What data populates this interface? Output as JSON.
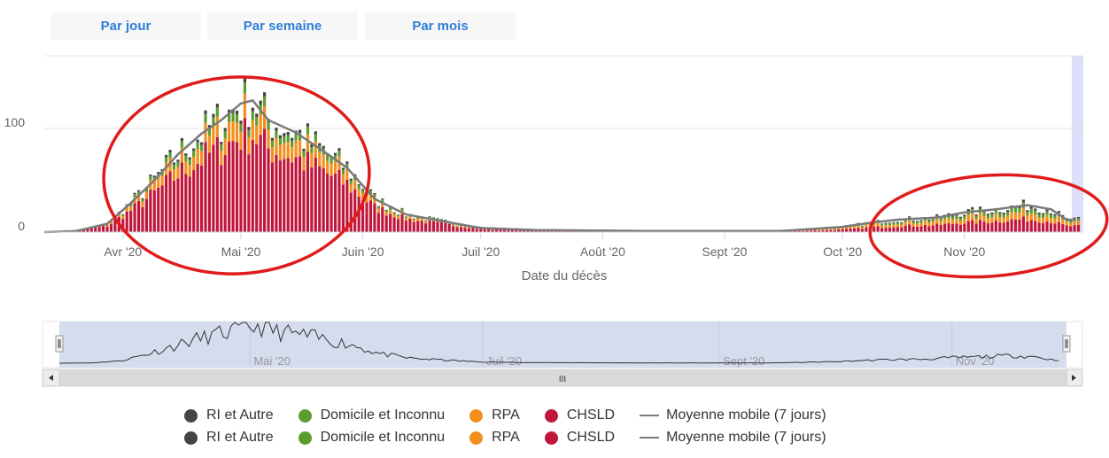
{
  "range_buttons": {
    "day": "Par jour",
    "week": "Par semaine",
    "month": "Par mois"
  },
  "colors": {
    "ri": "#434348",
    "domicile": "#5c9c2e",
    "rpa": "#f28f1e",
    "chsld": "#c0163c",
    "moving_avg": "#7a7a7a",
    "annotation": "#e11b1b",
    "navigator_fill": "#ccd6eb"
  },
  "chart_data": {
    "type": "bar",
    "stacked": true,
    "xlabel": "Date du décès",
    "ylabel": "",
    "ylim": [
      0,
      170
    ],
    "y_ticks": [
      0,
      100
    ],
    "x_range": [
      "2020-03-12",
      "2020-12-01"
    ],
    "x_ticks": [
      {
        "date": "2020-04-01",
        "label": "Avr '20"
      },
      {
        "date": "2020-05-01",
        "label": "Mai '20"
      },
      {
        "date": "2020-06-01",
        "label": "Juin '20"
      },
      {
        "date": "2020-07-01",
        "label": "Juil '20"
      },
      {
        "date": "2020-08-01",
        "label": "Août '20"
      },
      {
        "date": "2020-09-01",
        "label": "Sept '20"
      },
      {
        "date": "2020-10-01",
        "label": "Oct '20"
      },
      {
        "date": "2020-11-01",
        "label": "Nov '20"
      }
    ],
    "series_names": [
      "RI et Autre",
      "Domicile et Inconnu",
      "RPA",
      "CHSLD"
    ],
    "moving_average_name": "Moyenne mobile (7 jours)",
    "moving_average_keyframes": [
      {
        "date": "2020-03-12",
        "value": 0
      },
      {
        "date": "2020-03-20",
        "value": 1
      },
      {
        "date": "2020-03-28",
        "value": 8
      },
      {
        "date": "2020-04-03",
        "value": 28
      },
      {
        "date": "2020-04-09",
        "value": 50
      },
      {
        "date": "2020-04-15",
        "value": 75
      },
      {
        "date": "2020-04-21",
        "value": 95
      },
      {
        "date": "2020-04-26",
        "value": 108
      },
      {
        "date": "2020-05-01",
        "value": 124
      },
      {
        "date": "2020-05-04",
        "value": 127
      },
      {
        "date": "2020-05-08",
        "value": 108
      },
      {
        "date": "2020-05-15",
        "value": 96
      },
      {
        "date": "2020-05-22",
        "value": 78
      },
      {
        "date": "2020-05-28",
        "value": 62
      },
      {
        "date": "2020-06-04",
        "value": 32
      },
      {
        "date": "2020-06-12",
        "value": 17
      },
      {
        "date": "2020-06-22",
        "value": 10
      },
      {
        "date": "2020-07-01",
        "value": 4
      },
      {
        "date": "2020-07-15",
        "value": 2
      },
      {
        "date": "2020-08-15",
        "value": 1
      },
      {
        "date": "2020-09-15",
        "value": 1
      },
      {
        "date": "2020-10-01",
        "value": 5
      },
      {
        "date": "2020-10-08",
        "value": 9
      },
      {
        "date": "2020-10-15",
        "value": 12
      },
      {
        "date": "2020-10-25",
        "value": 14
      },
      {
        "date": "2020-11-01",
        "value": 19
      },
      {
        "date": "2020-11-09",
        "value": 22
      },
      {
        "date": "2020-11-17",
        "value": 26
      },
      {
        "date": "2020-11-23",
        "value": 22
      },
      {
        "date": "2020-11-27",
        "value": 12
      }
    ],
    "navigator": {
      "x_ticks": [
        "Mai '20",
        "Juil '20",
        "Sept '20",
        "Nov '20"
      ],
      "scroll_label": "III"
    }
  },
  "legend": {
    "items": [
      {
        "label": "RI et Autre"
      },
      {
        "label": "Domicile et Inconnu"
      },
      {
        "label": "RPA"
      },
      {
        "label": "CHSLD"
      },
      {
        "label": "Moyenne mobile (7 jours)"
      }
    ]
  }
}
